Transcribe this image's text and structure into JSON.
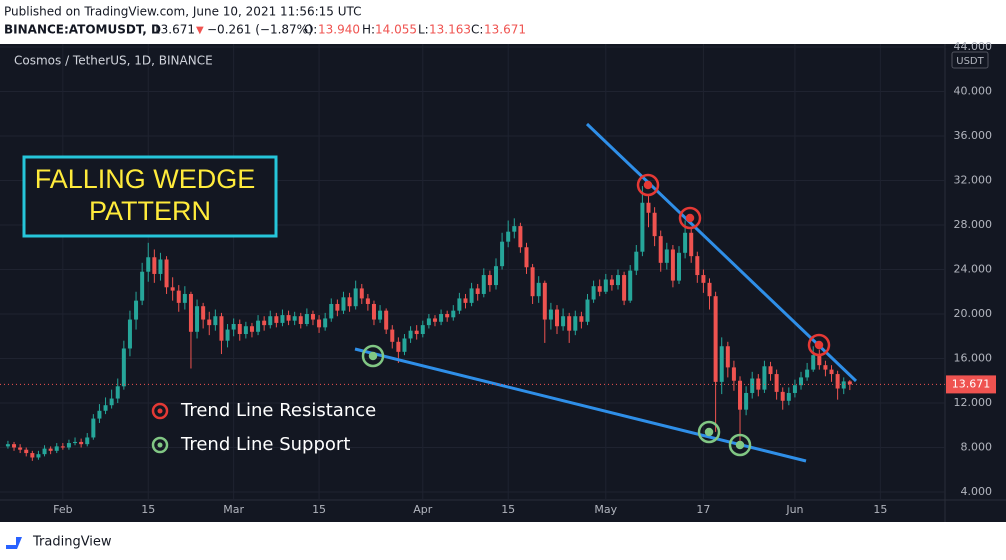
{
  "header": {
    "published": "Published on TradingView.com, June 10, 2021 11:56:15 UTC",
    "symbol": "BINANCE:ATOMUSDT, D",
    "last": "13.671",
    "change": "−0.261 (−1.87%)",
    "open_label": "O:",
    "open": "13.940",
    "high_label": "H:",
    "high": "14.055",
    "low_label": "L:",
    "low": "13.163",
    "close_label": "C:",
    "close": "13.671"
  },
  "chart_data": {
    "type": "candlestick",
    "title": "Cosmos / TetherUS, 1D, BINANCE",
    "currency": "USDT",
    "up_color": "#26a69a",
    "down_color": "#ef5350",
    "xlim": [
      -1.3,
      153.6
    ],
    "xticks": [
      {
        "value": 9,
        "label": "Feb"
      },
      {
        "value": 23,
        "label": "15"
      },
      {
        "value": 37,
        "label": "Mar"
      },
      {
        "value": 51,
        "label": "15"
      },
      {
        "value": 68,
        "label": "Apr"
      },
      {
        "value": 82,
        "label": "15"
      },
      {
        "value": 98,
        "label": "May"
      },
      {
        "value": 114,
        "label": "17"
      },
      {
        "value": 129,
        "label": "Jun"
      },
      {
        "value": 143,
        "label": "15"
      }
    ],
    "ylim": [
      3.28,
      44.27
    ],
    "yticks": [
      {
        "value": 4,
        "label": "4.000"
      },
      {
        "value": 8,
        "label": "8.000"
      },
      {
        "value": 12,
        "label": "12.000"
      },
      {
        "value": 16,
        "label": "16.000"
      },
      {
        "value": 20,
        "label": "20.000"
      },
      {
        "value": 24,
        "label": "24.000"
      },
      {
        "value": 28,
        "label": "28.000"
      },
      {
        "value": 32,
        "label": "32.000"
      },
      {
        "value": 36,
        "label": "36.000"
      },
      {
        "value": 40,
        "label": "40.000"
      },
      {
        "value": 44,
        "label": "44.000"
      }
    ],
    "grid": true,
    "last_price": {
      "value": 13.671,
      "label": "13.671"
    },
    "annotation": [
      "FALLING WEDGE",
      "PATTERN"
    ],
    "legend": [
      "Trend Line Resistance",
      "Trend Line Support"
    ],
    "open": [
      8.1,
      8.3,
      8.0,
      7.8,
      7.5,
      7.1,
      7.4,
      7.9,
      7.7,
      8.1,
      8.0,
      8.4,
      8.5,
      8.3,
      8.9,
      10.6,
      11.3,
      11.8,
      12.4,
      13.5,
      16.9,
      19.5,
      21.2,
      23.8,
      25.1,
      23.6,
      24.9,
      22.4,
      22.1,
      21.0,
      21.8,
      18.4,
      20.7,
      19.5,
      19.0,
      19.8,
      17.6,
      18.6,
      19.1,
      18.2,
      18.9,
      18.4,
      19.4,
      19.0,
      19.8,
      19.2,
      19.9,
      19.4,
      19.8,
      19.1,
      20.0,
      19.5,
      18.8,
      19.6,
      20.9,
      20.3,
      21.5,
      20.7,
      22.3,
      21.4,
      20.9,
      19.5,
      20.3,
      18.6,
      17.5,
      16.6,
      17.8,
      18.5,
      18.2,
      19.0,
      19.6,
      19.3,
      20.0,
      19.7,
      20.3,
      21.4,
      21.0,
      22.3,
      21.8,
      23.5,
      22.6,
      24.3,
      26.5,
      27.4,
      27.9,
      26.0,
      24.2,
      21.6,
      22.8,
      19.5,
      20.4,
      18.9,
      19.8,
      18.5,
      19.8,
      19.3,
      21.3,
      22.5,
      22.0,
      23.1,
      22.6,
      23.5,
      21.2,
      23.9,
      25.6,
      30.0,
      29.1,
      27.0,
      24.6,
      25.8,
      23.0,
      25.5,
      27.3,
      25.2,
      23.5,
      22.8,
      21.6,
      13.9,
      17.1,
      15.2,
      14.0,
      11.4,
      12.9,
      14.2,
      13.2,
      15.3,
      14.6,
      13.0,
      12.2,
      12.9,
      13.6,
      14.3,
      15.0,
      16.3,
      15.4,
      15.0,
      14.6,
      13.3,
      13.94
    ],
    "high": [
      8.6,
      8.5,
      8.3,
      8.0,
      7.7,
      7.7,
      8.2,
      8.1,
      8.4,
      8.4,
      8.7,
      8.9,
      8.8,
      9.3,
      11.0,
      11.9,
      12.5,
      13.2,
      14.2,
      17.6,
      20.3,
      22.0,
      24.6,
      26.4,
      25.8,
      25.5,
      25.2,
      23.3,
      22.6,
      22.5,
      22.0,
      21.3,
      21.0,
      20.2,
      20.4,
      20.1,
      19.1,
      19.6,
      19.5,
      19.3,
      19.2,
      19.9,
      19.8,
      20.3,
      20.1,
      20.4,
      20.3,
      20.2,
      20.1,
      20.5,
      20.3,
      19.9,
      20.1,
      21.4,
      21.3,
      22.0,
      21.9,
      23.0,
      22.7,
      21.8,
      21.2,
      20.8,
      20.5,
      19.0,
      17.9,
      18.2,
      18.9,
      19.0,
      19.4,
      20.0,
      19.9,
      20.4,
      20.3,
      20.8,
      21.9,
      21.8,
      22.8,
      22.7,
      24.1,
      23.9,
      25.0,
      27.3,
      28.4,
      28.6,
      28.2,
      26.4,
      24.5,
      23.4,
      23.0,
      21.0,
      20.8,
      20.5,
      20.1,
      20.3,
      20.2,
      21.8,
      23.0,
      23.1,
      23.6,
      23.5,
      24.0,
      23.8,
      24.4,
      26.2,
      31.5,
      30.6,
      29.6,
      27.5,
      26.4,
      26.2,
      26.1,
      28.4,
      27.7,
      25.6,
      24.0,
      23.2,
      22.0,
      17.9,
      17.5,
      15.8,
      14.4,
      13.5,
      14.8,
      14.6,
      15.8,
      15.7,
      15.0,
      13.4,
      13.4,
      14.1,
      14.8,
      15.6,
      17.1,
      16.8,
      15.8,
      15.4,
      14.9,
      14.3,
      14.055
    ],
    "low": [
      7.9,
      7.7,
      7.5,
      7.2,
      6.8,
      6.9,
      7.2,
      7.4,
      7.5,
      7.8,
      7.8,
      8.2,
      8.0,
      8.1,
      8.7,
      10.2,
      11.0,
      11.5,
      12.0,
      13.2,
      16.2,
      18.6,
      20.8,
      22.9,
      22.8,
      23.0,
      21.8,
      21.2,
      20.2,
      20.4,
      15.1,
      17.8,
      18.7,
      18.1,
      18.5,
      16.4,
      17.0,
      18.0,
      17.6,
      17.8,
      17.9,
      18.1,
      18.5,
      18.7,
      18.8,
      18.9,
      19.0,
      19.0,
      18.7,
      18.9,
      19.0,
      18.3,
      18.5,
      19.3,
      19.8,
      20.0,
      20.2,
      20.4,
      20.9,
      20.3,
      19.0,
      19.2,
      18.2,
      16.9,
      15.6,
      16.3,
      17.4,
      17.7,
      17.9,
      18.7,
      18.9,
      19.0,
      19.3,
      19.4,
      20.0,
      20.5,
      20.7,
      21.2,
      21.5,
      22.0,
      22.2,
      24.0,
      26.0,
      26.8,
      25.5,
      23.6,
      20.9,
      21.0,
      17.4,
      18.6,
      18.2,
      18.5,
      17.4,
      18.1,
      18.7,
      19.0,
      21.0,
      21.6,
      21.8,
      22.1,
      22.2,
      20.8,
      21.0,
      23.5,
      25.2,
      27.8,
      26.1,
      23.8,
      24.0,
      22.4,
      22.7,
      25.0,
      24.6,
      22.8,
      21.9,
      20.4,
      9.4,
      12.8,
      14.3,
      13.1,
      8.2,
      10.9,
      12.4,
      12.6,
      12.9,
      14.0,
      12.3,
      11.4,
      11.8,
      12.5,
      13.2,
      14.0,
      14.8,
      15.0,
      14.4,
      13.9,
      12.3,
      12.8,
      13.163
    ],
    "close": [
      8.3,
      8.0,
      7.8,
      7.5,
      7.1,
      7.4,
      7.9,
      7.7,
      8.1,
      8.0,
      8.4,
      8.5,
      8.3,
      8.9,
      10.6,
      11.3,
      11.8,
      12.4,
      13.5,
      16.9,
      19.5,
      21.2,
      23.8,
      25.1,
      23.6,
      24.9,
      22.4,
      22.1,
      21.0,
      21.8,
      18.4,
      20.7,
      19.5,
      19.0,
      19.8,
      17.6,
      18.6,
      19.1,
      18.2,
      18.9,
      18.4,
      19.4,
      19.0,
      19.8,
      19.2,
      19.9,
      19.4,
      19.8,
      19.1,
      20.0,
      19.5,
      18.8,
      19.6,
      20.9,
      20.3,
      21.5,
      20.7,
      22.3,
      21.4,
      20.9,
      19.5,
      20.3,
      18.6,
      17.5,
      16.6,
      17.8,
      18.5,
      18.2,
      19.0,
      19.6,
      19.3,
      20.0,
      19.7,
      20.3,
      21.4,
      21.0,
      22.3,
      21.8,
      23.5,
      22.6,
      24.3,
      26.5,
      27.4,
      27.9,
      26.0,
      24.2,
      21.6,
      22.8,
      19.5,
      20.4,
      18.9,
      19.8,
      18.5,
      19.8,
      19.3,
      21.3,
      22.5,
      22.0,
      23.1,
      22.6,
      23.5,
      21.2,
      23.9,
      25.6,
      30.0,
      29.1,
      27.0,
      24.6,
      25.8,
      23.0,
      25.5,
      27.3,
      25.2,
      23.5,
      22.8,
      21.6,
      13.9,
      17.1,
      15.2,
      14.0,
      11.4,
      12.9,
      14.2,
      13.2,
      15.3,
      14.6,
      13.0,
      12.2,
      12.9,
      13.6,
      14.3,
      15.0,
      16.3,
      15.4,
      15.0,
      14.6,
      13.3,
      13.94,
      13.671
    ]
  },
  "footer": {
    "brand": "TradingView"
  }
}
